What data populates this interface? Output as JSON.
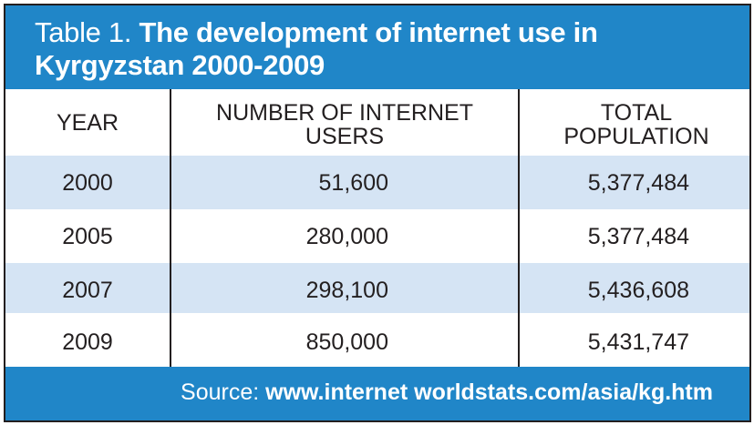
{
  "title": {
    "prefix": "Table 1.",
    "main": "The development of internet use in Kyrgyzstan 2000-2009"
  },
  "columns": {
    "year": "YEAR",
    "users": "NUMBER OF INTERNET USERS",
    "population": "TOTAL POPULATION"
  },
  "rows": [
    {
      "year": "2000",
      "users": "51,600",
      "population": "5,377,484"
    },
    {
      "year": "2005",
      "users": "280,000",
      "population": "5,377,484"
    },
    {
      "year": "2007",
      "users": "298,100",
      "population": "5,436,608"
    },
    {
      "year": "2009",
      "users": "850,000",
      "population": "5,431,747"
    }
  ],
  "source": {
    "label": "Source:",
    "url": "www.internet worldstats.com/asia/kg.htm"
  },
  "colors": {
    "header_blue": "#2086c8",
    "row_shade": "#d5e4f4",
    "text": "#231f20"
  }
}
